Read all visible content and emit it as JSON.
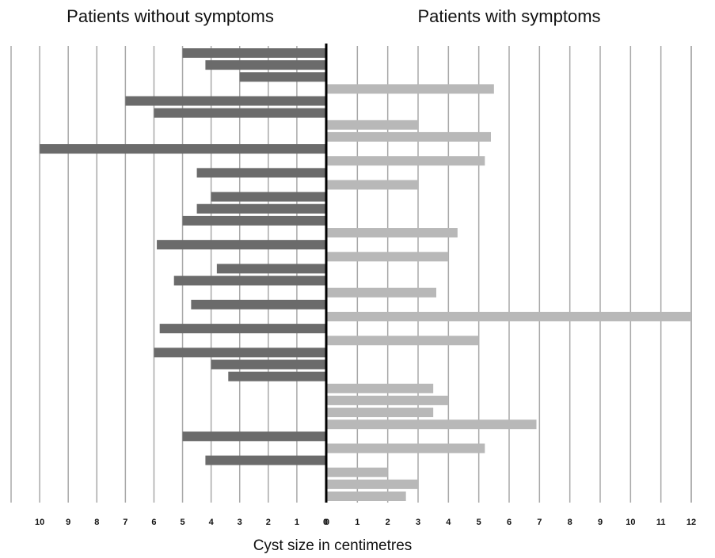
{
  "chart_data": [
    {
      "type": "bar",
      "title": "Patients without symptoms",
      "color": "#6b6b6b",
      "categories": [
        null,
        null,
        null,
        null,
        null,
        null,
        null,
        null,
        null,
        null,
        null,
        null,
        null,
        null,
        null,
        null,
        null,
        null,
        null,
        null,
        null,
        null,
        null,
        null,
        null,
        null,
        null,
        null,
        null,
        null,
        null,
        null,
        null,
        null,
        null,
        null,
        null,
        null
      ],
      "values": [
        5.0,
        4.2,
        3.0,
        null,
        7.0,
        6.0,
        null,
        null,
        10.0,
        null,
        4.5,
        null,
        4.0,
        4.5,
        5.0,
        null,
        5.9,
        null,
        3.8,
        5.3,
        null,
        4.7,
        null,
        5.8,
        null,
        6.0,
        4.0,
        3.4,
        null,
        null,
        null,
        null,
        5.0,
        null,
        4.2,
        null,
        null,
        null
      ],
      "xlim": [
        11,
        0
      ],
      "xticks": [
        10,
        9,
        8,
        7,
        6,
        5,
        4,
        3,
        2,
        1,
        0
      ],
      "grid": true
    },
    {
      "type": "bar",
      "title": "Patients with symptoms",
      "color": "#b8b8b8",
      "categories": [
        null,
        null,
        null,
        null,
        null,
        null,
        null,
        null,
        null,
        null,
        null,
        null,
        null,
        null,
        null,
        null,
        null,
        null,
        null,
        null,
        null,
        null,
        null,
        null,
        null,
        null,
        null,
        null,
        null,
        null,
        null,
        null,
        null,
        null,
        null,
        null,
        null,
        null
      ],
      "values": [
        null,
        null,
        null,
        5.5,
        null,
        null,
        3.0,
        5.4,
        null,
        5.2,
        null,
        3.0,
        null,
        null,
        null,
        4.3,
        null,
        4.0,
        null,
        null,
        3.6,
        null,
        12,
        null,
        5.0,
        null,
        null,
        null,
        3.5,
        4.0,
        3.5,
        6.9,
        null,
        5.2,
        null,
        2.0,
        3.0,
        2.6
      ],
      "xlim": [
        0,
        12
      ],
      "xticks": [
        0,
        1,
        2,
        3,
        4,
        5,
        6,
        7,
        8,
        9,
        10,
        11,
        12
      ],
      "grid": true
    }
  ],
  "xlabel": "Cyst size in centimetres"
}
